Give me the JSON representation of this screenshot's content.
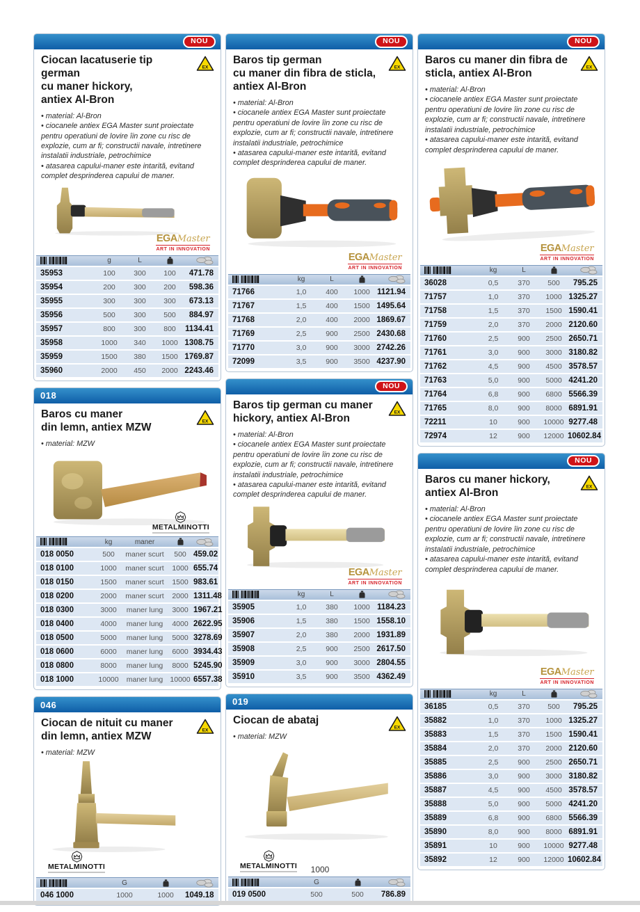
{
  "page": {
    "number": "1000"
  },
  "badges": {
    "nou": "NOU",
    "ex": "EX"
  },
  "brands": {
    "ega": {
      "word": "EGA",
      "script": "Master",
      "tagline": "ART IN INNOVATION"
    },
    "minotti": {
      "name": "METALMINOTTI"
    }
  },
  "shared": {
    "albron": {
      "b1": "material: Al-Bron",
      "b2": "ciocanele antiex EGA Master sunt proiectate pentru operatiuni de lovire îin zone cu risc de explozie, cum ar fi; constructii navale, intretinere instalatii industriale, petrochimice",
      "b3": "atasarea capului-maner este intarită, evitand complet desprinderea capului de maner."
    },
    "mzw": "material: MZW",
    "headers": {
      "g": "g",
      "kg": "kg",
      "L": "L",
      "maner": "maner",
      "G": "G"
    }
  },
  "cards": {
    "c1": {
      "title": "Ciocan lacatuserie tip german\ncu maner hickory,\nantiex Al-Bron",
      "table": {
        "rows": [
          [
            "35953",
            "100",
            "300",
            "100",
            "471.78"
          ],
          [
            "35954",
            "200",
            "300",
            "200",
            "598.36"
          ],
          [
            "35955",
            "300",
            "300",
            "300",
            "673.13"
          ],
          [
            "35956",
            "500",
            "300",
            "500",
            "884.97"
          ],
          [
            "35957",
            "800",
            "300",
            "800",
            "1134.41"
          ],
          [
            "35958",
            "1000",
            "340",
            "1000",
            "1308.75"
          ],
          [
            "35959",
            "1500",
            "380",
            "1500",
            "1769.87"
          ],
          [
            "35960",
            "2000",
            "450",
            "2000",
            "2243.46"
          ]
        ]
      }
    },
    "c2": {
      "code": "018",
      "title": "Baros cu maner\ndin lemn, antiex MZW",
      "table": {
        "rows": [
          [
            "018 0050",
            "500",
            "maner scurt",
            "500",
            "459.02"
          ],
          [
            "018 0100",
            "1000",
            "maner scurt",
            "1000",
            "655.74"
          ],
          [
            "018 0150",
            "1500",
            "maner scurt",
            "1500",
            "983.61"
          ],
          [
            "018 0200",
            "2000",
            "maner scurt",
            "2000",
            "1311.48"
          ],
          [
            "018 0300",
            "3000",
            "maner lung",
            "3000",
            "1967.21"
          ],
          [
            "018 0400",
            "4000",
            "maner lung",
            "4000",
            "2622.95"
          ],
          [
            "018 0500",
            "5000",
            "maner lung",
            "5000",
            "3278.69"
          ],
          [
            "018 0600",
            "6000",
            "maner lung",
            "6000",
            "3934.43"
          ],
          [
            "018 0800",
            "8000",
            "maner lung",
            "8000",
            "5245.90"
          ],
          [
            "018 1000",
            "10000",
            "maner lung",
            "10000",
            "6557.38"
          ]
        ]
      }
    },
    "c3": {
      "code": "046",
      "title": "Ciocan de nituit cu maner\ndin lemn, antiex MZW",
      "table": {
        "rows": [
          [
            "046 1000",
            "1000",
            "1000",
            "1049.18"
          ]
        ]
      }
    },
    "c4": {
      "title": "Baros tip german\ncu maner din fibra de sticla,\nantiex Al-Bron",
      "table": {
        "rows": [
          [
            "71766",
            "1,0",
            "400",
            "1000",
            "1121.94"
          ],
          [
            "71767",
            "1,5",
            "400",
            "1500",
            "1495.64"
          ],
          [
            "71768",
            "2,0",
            "400",
            "2000",
            "1869.67"
          ],
          [
            "71769",
            "2,5",
            "900",
            "2500",
            "2430.68"
          ],
          [
            "71770",
            "3,0",
            "900",
            "3000",
            "2742.26"
          ],
          [
            "72099",
            "3,5",
            "900",
            "3500",
            "4237.90"
          ]
        ]
      }
    },
    "c5": {
      "title": "Baros tip german cu maner\nhickory, antiex Al-Bron",
      "table": {
        "rows": [
          [
            "35905",
            "1,0",
            "380",
            "1000",
            "1184.23"
          ],
          [
            "35906",
            "1,5",
            "380",
            "1500",
            "1558.10"
          ],
          [
            "35907",
            "2,0",
            "380",
            "2000",
            "1931.89"
          ],
          [
            "35908",
            "2,5",
            "900",
            "2500",
            "2617.50"
          ],
          [
            "35909",
            "3,0",
            "900",
            "3000",
            "2804.55"
          ],
          [
            "35910",
            "3,5",
            "900",
            "3500",
            "4362.49"
          ]
        ]
      }
    },
    "c6": {
      "code": "019",
      "title": "Ciocan de abataj",
      "table": {
        "rows": [
          [
            "019 0500",
            "500",
            "500",
            "786.89"
          ]
        ]
      }
    },
    "c7": {
      "title": "Baros cu maner din fibra de\nsticla, antiex Al-Bron",
      "table": {
        "rows": [
          [
            "36028",
            "0,5",
            "370",
            "500",
            "795.25"
          ],
          [
            "71757",
            "1,0",
            "370",
            "1000",
            "1325.27"
          ],
          [
            "71758",
            "1,5",
            "370",
            "1500",
            "1590.41"
          ],
          [
            "71759",
            "2,0",
            "370",
            "2000",
            "2120.60"
          ],
          [
            "71760",
            "2,5",
            "900",
            "2500",
            "2650.71"
          ],
          [
            "71761",
            "3,0",
            "900",
            "3000",
            "3180.82"
          ],
          [
            "71762",
            "4,5",
            "900",
            "4500",
            "3578.57"
          ],
          [
            "71763",
            "5,0",
            "900",
            "5000",
            "4241.20"
          ],
          [
            "71764",
            "6,8",
            "900",
            "6800",
            "5566.39"
          ],
          [
            "71765",
            "8,0",
            "900",
            "8000",
            "6891.91"
          ],
          [
            "72211",
            "10",
            "900",
            "10000",
            "9277.48"
          ],
          [
            "72974",
            "12",
            "900",
            "12000",
            "10602.84"
          ]
        ]
      }
    },
    "c8": {
      "title": "Baros cu maner hickory,\nantiex Al-Bron",
      "table": {
        "rows": [
          [
            "36185",
            "0,5",
            "370",
            "500",
            "795.25"
          ],
          [
            "35882",
            "1,0",
            "370",
            "1000",
            "1325.27"
          ],
          [
            "35883",
            "1,5",
            "370",
            "1500",
            "1590.41"
          ],
          [
            "35884",
            "2,0",
            "370",
            "2000",
            "2120.60"
          ],
          [
            "35885",
            "2,5",
            "900",
            "2500",
            "2650.71"
          ],
          [
            "35886",
            "3,0",
            "900",
            "3000",
            "3180.82"
          ],
          [
            "35887",
            "4,5",
            "900",
            "4500",
            "3578.57"
          ],
          [
            "35888",
            "5,0",
            "900",
            "5000",
            "4241.20"
          ],
          [
            "35889",
            "6,8",
            "900",
            "6800",
            "5566.39"
          ],
          [
            "35890",
            "8,0",
            "900",
            "8000",
            "6891.91"
          ],
          [
            "35891",
            "10",
            "900",
            "10000",
            "9277.48"
          ],
          [
            "35892",
            "12",
            "900",
            "12000",
            "10602.84"
          ]
        ]
      }
    }
  }
}
